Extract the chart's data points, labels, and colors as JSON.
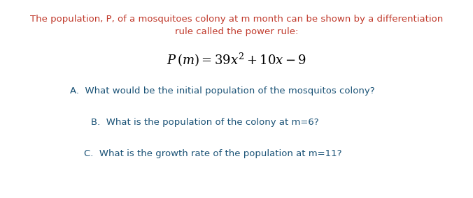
{
  "bg_color": "#ffffff",
  "intro_line1": "The population, P, of a mosquitoes colony at m month can be shown by a differentiation",
  "intro_line2": "rule called the power rule:",
  "intro_color": "#c0392b",
  "formula": "$P\\,(m) = 39x^2 + 10x - 9$",
  "formula_color": "#000000",
  "formula_fontsize": 13,
  "qa_color": "#1a5276",
  "q_a": "A.  What would be the initial population of the mosquitos colony?",
  "q_b": "B.  What is the population of the colony at m=6?",
  "q_c": "C.  What is the growth rate of the population at m=11?",
  "intro_fontsize": 9.5,
  "qa_fontsize": 9.5,
  "fig_width": 6.76,
  "fig_height": 2.84,
  "dpi": 100
}
